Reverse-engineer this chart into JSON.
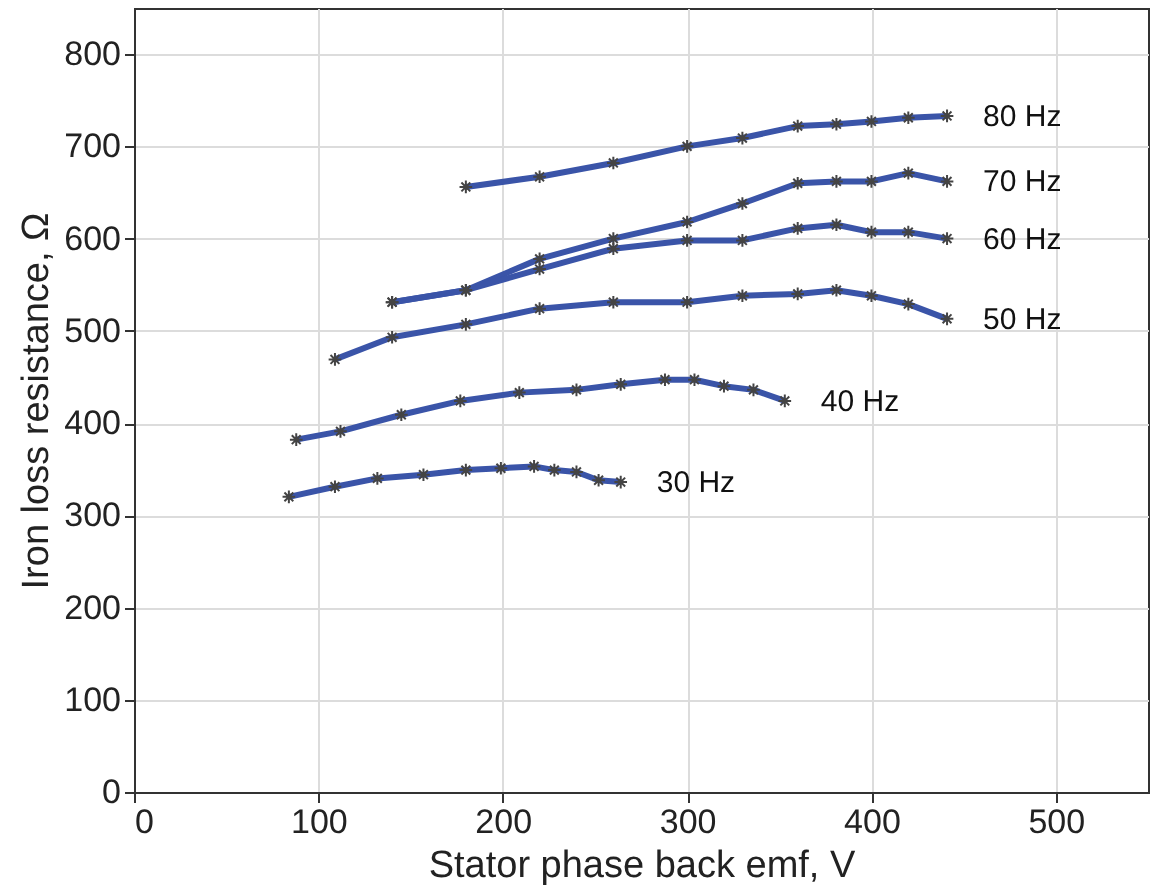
{
  "chart_data": {
    "type": "line",
    "xlabel": "Stator phase back emf, V",
    "ylabel": "Iron loss resistance, Ω",
    "xlim": [
      0,
      550
    ],
    "ylim": [
      0,
      850
    ],
    "xticks": [
      0,
      100,
      200,
      300,
      400,
      500
    ],
    "yticks": [
      0,
      100,
      200,
      300,
      400,
      500,
      600,
      700,
      800
    ],
    "grid": true,
    "marker": "cross",
    "line_style": "solid",
    "series": [
      {
        "name": "80 Hz",
        "color": "#3a54a8",
        "x": [
          180,
          220,
          260,
          300,
          330,
          360,
          381,
          400,
          420,
          441
        ],
        "values": [
          656,
          667,
          682,
          700,
          709,
          722,
          724,
          727,
          731,
          733
        ]
      },
      {
        "name": "70 Hz",
        "color": "#3a54a8",
        "x": [
          140,
          180,
          220,
          260,
          300,
          330,
          360,
          381,
          400,
          420,
          441
        ],
        "values": [
          531,
          544,
          578,
          600,
          618,
          638,
          660,
          662,
          662,
          671,
          662
        ]
      },
      {
        "name": "60 Hz",
        "color": "#3a54a8",
        "x": [
          140,
          180,
          220,
          260,
          300,
          330,
          360,
          381,
          400,
          420,
          441
        ],
        "values": [
          531,
          544,
          567,
          589,
          598,
          598,
          611,
          615,
          607,
          607,
          600
        ]
      },
      {
        "name": "50 Hz",
        "color": "#3a54a8",
        "x": [
          109,
          140,
          180,
          220,
          260,
          300,
          330,
          360,
          381,
          400,
          420,
          441
        ],
        "values": [
          469,
          493,
          507,
          524,
          531,
          531,
          538,
          540,
          544,
          538,
          529,
          513
        ]
      },
      {
        "name": "40 Hz",
        "color": "#3a54a8",
        "x": [
          88,
          112,
          145,
          177,
          209,
          240,
          264,
          288,
          304,
          320,
          336,
          353
        ],
        "values": [
          382,
          391,
          409,
          424,
          433,
          436,
          442,
          447,
          447,
          440,
          436,
          424
        ]
      },
      {
        "name": "30 Hz",
        "color": "#3a54a8",
        "x": [
          84,
          109,
          132,
          157,
          180,
          199,
          217,
          228,
          240,
          252,
          264
        ],
        "values": [
          320,
          331,
          340,
          344,
          349,
          351,
          353,
          349,
          347,
          338,
          336
        ]
      }
    ]
  }
}
